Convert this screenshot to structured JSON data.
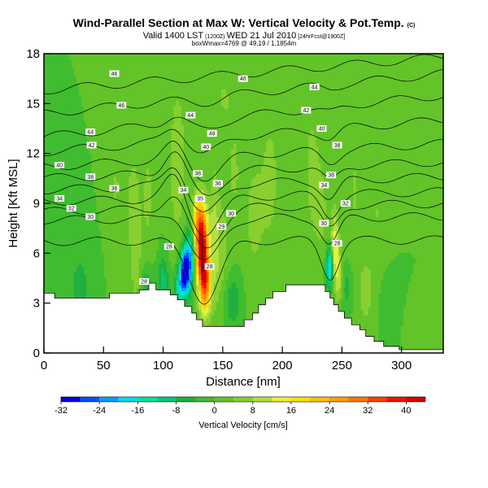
{
  "chart_data": {
    "type": "heatmap",
    "title": "Wind-Parallel Section at Max W: Vertical Velocity & Pot.Temp.",
    "title_mark": "(C)",
    "subtitle": "Valid 1400 LST",
    "subtitle_utc": "(1200Z)",
    "subtitle_date": "WED 21 Jul 2010",
    "subtitle_run": "[24hrFcst@1900Z]",
    "subtitle2": "boxWmax=4769 @ 49,19 / 1,1854m",
    "xlabel": "Distance [nm]",
    "ylabel": "Height [Kft MSL]",
    "xlim": [
      0,
      335
    ],
    "ylim": [
      0,
      18
    ],
    "x_ticks": [
      0,
      50,
      100,
      150,
      200,
      250,
      300
    ],
    "y_ticks": [
      0,
      3,
      6,
      9,
      12,
      15,
      18
    ],
    "colorbar": {
      "label": "Vertical Velocity [cm/s]",
      "min": -32,
      "max": 44,
      "tick_values": [
        -32,
        -24,
        -16,
        -8,
        0,
        8,
        16,
        24,
        32,
        40
      ],
      "tick_labels": [
        "-32",
        "-24",
        "-16",
        "-8",
        "0",
        "8",
        "16",
        "24",
        "32",
        "40"
      ],
      "stops": [
        {
          "v": -32,
          "color": "#0000e0"
        },
        {
          "v": -28,
          "color": "#0050ff"
        },
        {
          "v": -24,
          "color": "#00a0ff"
        },
        {
          "v": -20,
          "color": "#00dcf0"
        },
        {
          "v": -16,
          "color": "#00e0a0"
        },
        {
          "v": -12,
          "color": "#00c878"
        },
        {
          "v": -8,
          "color": "#20b040"
        },
        {
          "v": -4,
          "color": "#40bc30"
        },
        {
          "v": 0,
          "color": "#62c428"
        },
        {
          "v": 4,
          "color": "#88d030"
        },
        {
          "v": 8,
          "color": "#b4e040"
        },
        {
          "v": 12,
          "color": "#e8f040"
        },
        {
          "v": 16,
          "color": "#ffe000"
        },
        {
          "v": 20,
          "color": "#ffc000"
        },
        {
          "v": 24,
          "color": "#ffa000"
        },
        {
          "v": 28,
          "color": "#ff7800"
        },
        {
          "v": 32,
          "color": "#ff4000"
        },
        {
          "v": 36,
          "color": "#f01000"
        },
        {
          "v": 40,
          "color": "#d00000"
        },
        {
          "v": 44,
          "color": "#900020"
        }
      ]
    },
    "background_w": 0,
    "velocity_features": [
      {
        "x": 133,
        "z": 5.8,
        "sx": 3.5,
        "sz": 1.8,
        "w": 34
      },
      {
        "x": 131,
        "z": 7.3,
        "sx": 4.0,
        "sz": 1.5,
        "w": 18
      },
      {
        "x": 136,
        "z": 4.0,
        "sx": 3.0,
        "sz": 1.2,
        "w": 20
      },
      {
        "x": 118,
        "z": 4.9,
        "sx": 3.0,
        "sz": 1.0,
        "w": -32
      },
      {
        "x": 123,
        "z": 5.8,
        "sx": 3.0,
        "sz": 1.2,
        "w": -18
      },
      {
        "x": 113,
        "z": 3.9,
        "sx": 3.0,
        "sz": 0.7,
        "w": -12
      },
      {
        "x": 128,
        "z": 8.2,
        "sx": 3.0,
        "sz": 1.0,
        "w": 8
      },
      {
        "x": 148,
        "z": 6.0,
        "sx": 6.0,
        "sz": 2.5,
        "w": 6
      },
      {
        "x": 158,
        "z": 3.2,
        "sx": 5.0,
        "sz": 1.2,
        "w": -8
      },
      {
        "x": 112,
        "z": 11.5,
        "sx": 5.0,
        "sz": 3.5,
        "w": 7
      },
      {
        "x": 143,
        "z": 7.5,
        "sx": 3.0,
        "sz": 3.0,
        "w": 6
      },
      {
        "x": 75,
        "z": 8.8,
        "sx": 6.0,
        "sz": 3.5,
        "w": 5
      },
      {
        "x": 88,
        "z": 9.5,
        "sx": 4.0,
        "sz": 3.5,
        "w": 4
      },
      {
        "x": 60,
        "z": 10.0,
        "sx": 4.0,
        "sz": 2.0,
        "w": 4
      },
      {
        "x": 176,
        "z": 8.2,
        "sx": 6.0,
        "sz": 3.0,
        "w": 5
      },
      {
        "x": 190,
        "z": 10.5,
        "sx": 6.0,
        "sz": 3.5,
        "w": 5
      },
      {
        "x": 160,
        "z": 10.8,
        "sx": 5.0,
        "sz": 2.5,
        "w": 4
      },
      {
        "x": 225,
        "z": 11.0,
        "sx": 6.0,
        "sz": 3.5,
        "w": 5
      },
      {
        "x": 260,
        "z": 10.0,
        "sx": 6.0,
        "sz": 4.0,
        "w": 4
      },
      {
        "x": 280,
        "z": 8.5,
        "sx": 8.0,
        "sz": 3.0,
        "w": 4
      },
      {
        "x": 233,
        "z": 8.5,
        "sx": 4.0,
        "sz": 2.0,
        "w": 4
      },
      {
        "x": 150,
        "z": 15.5,
        "sx": 10.0,
        "sz": 2.0,
        "w": 4
      },
      {
        "x": 240,
        "z": 5.2,
        "sx": 2.0,
        "sz": 0.9,
        "w": -22
      },
      {
        "x": 244,
        "z": 6.2,
        "sx": 2.5,
        "sz": 1.6,
        "w": 16
      },
      {
        "x": 248,
        "z": 4.5,
        "sx": 2.0,
        "sz": 1.0,
        "w": 10
      },
      {
        "x": 254,
        "z": 4.0,
        "sx": 4.0,
        "sz": 1.0,
        "w": -6
      },
      {
        "x": 86,
        "z": 4.0,
        "sx": 4.0,
        "sz": 1.0,
        "w": -8
      },
      {
        "x": 100,
        "z": 4.4,
        "sx": 3.0,
        "sz": 1.0,
        "w": -10
      },
      {
        "x": 78,
        "z": 4.6,
        "sx": 3.0,
        "sz": 1.6,
        "w": 4
      },
      {
        "x": 30,
        "z": 4.0,
        "sx": 6.0,
        "sz": 1.5,
        "w": -6
      },
      {
        "x": 290,
        "z": 3.0,
        "sx": 6.0,
        "sz": 1.5,
        "w": -4
      },
      {
        "x": 270,
        "z": 3.5,
        "sx": 5.0,
        "sz": 1.5,
        "w": 5
      },
      {
        "x": 312,
        "z": 1.4,
        "sx": 6.0,
        "sz": 1.0,
        "w": 4
      }
    ],
    "terrain": [
      [
        0,
        3.6
      ],
      [
        9,
        3.6
      ],
      [
        9,
        3.3
      ],
      [
        55,
        3.3
      ],
      [
        55,
        3.6
      ],
      [
        80,
        3.6
      ],
      [
        80,
        3.8
      ],
      [
        88,
        3.8
      ],
      [
        88,
        4.2
      ],
      [
        94,
        4.2
      ],
      [
        94,
        3.8
      ],
      [
        106,
        3.8
      ],
      [
        106,
        3.5
      ],
      [
        112,
        3.5
      ],
      [
        112,
        3.2
      ],
      [
        118,
        3.2
      ],
      [
        118,
        2.8
      ],
      [
        124,
        2.8
      ],
      [
        124,
        2.4
      ],
      [
        128,
        2.4
      ],
      [
        128,
        2.0
      ],
      [
        133,
        2.0
      ],
      [
        133,
        1.6
      ],
      [
        168,
        1.6
      ],
      [
        168,
        2.0
      ],
      [
        175,
        2.0
      ],
      [
        175,
        2.4
      ],
      [
        180,
        2.4
      ],
      [
        180,
        2.9
      ],
      [
        186,
        2.9
      ],
      [
        186,
        3.3
      ],
      [
        192,
        3.3
      ],
      [
        192,
        3.7
      ],
      [
        203,
        3.7
      ],
      [
        203,
        4.1
      ],
      [
        236,
        4.1
      ],
      [
        236,
        3.7
      ],
      [
        240,
        3.7
      ],
      [
        240,
        3.3
      ],
      [
        243,
        3.3
      ],
      [
        243,
        2.9
      ],
      [
        247,
        2.9
      ],
      [
        247,
        2.5
      ],
      [
        252,
        2.5
      ],
      [
        252,
        2.1
      ],
      [
        258,
        2.1
      ],
      [
        258,
        1.7
      ],
      [
        265,
        1.7
      ],
      [
        265,
        1.4
      ],
      [
        270,
        1.4
      ],
      [
        270,
        1.0
      ],
      [
        277,
        1.0
      ],
      [
        277,
        0.7
      ],
      [
        285,
        0.7
      ],
      [
        285,
        0.4
      ],
      [
        298,
        0.4
      ],
      [
        298,
        0.2
      ],
      [
        335,
        0.2
      ]
    ],
    "theta_contours": [
      {
        "value": 28,
        "label": "28",
        "base_z": 6.7,
        "top_z": 6.8,
        "dip": 1.2,
        "tilt": 0.0
      },
      {
        "value": 30,
        "label": "30",
        "base_z": 8.0,
        "top_z": 8.2,
        "dip": 0.9,
        "tilt": 0.05
      },
      {
        "value": 32,
        "label": "32",
        "base_z": 8.5,
        "top_z": 9.0,
        "dip": 0.8,
        "tilt": 0.1
      },
      {
        "value": 34,
        "label": "34",
        "base_z": 9.1,
        "top_z": 9.7,
        "dip": 0.7,
        "tilt": 0.15
      },
      {
        "value": 36,
        "label": "36",
        "base_z": 9.8,
        "top_z": 10.6,
        "dip": 0.6,
        "tilt": 0.15
      },
      {
        "value": 38,
        "label": "38",
        "base_z": 10.5,
        "top_z": 11.5,
        "dip": 0.5,
        "tilt": 0.15
      },
      {
        "value": 40,
        "label": "40",
        "base_z": 11.2,
        "top_z": 12.6,
        "dip": 0.4,
        "tilt": 0.1
      },
      {
        "value": 42,
        "label": "42",
        "base_z": 12.1,
        "top_z": 14.0,
        "dip": 0.3,
        "tilt": 0.1
      },
      {
        "value": 44,
        "label": "44",
        "base_z": 13.0,
        "top_z": 15.5,
        "dip": 0.2,
        "tilt": 0.05
      },
      {
        "value": 46,
        "label": "46",
        "base_z": 14.4,
        "top_z": 16.8,
        "dip": 0.1,
        "tilt": 0.0
      },
      {
        "value": 48,
        "label": "48",
        "base_z": 15.8,
        "top_z": 17.8,
        "dip": 0.0,
        "tilt": 0.0
      }
    ],
    "contour_labels": [
      {
        "text": "46",
        "x": 59,
        "z": 16.8
      },
      {
        "text": "46",
        "x": 167,
        "z": 16.5
      },
      {
        "text": "44",
        "x": 227,
        "z": 16.0
      },
      {
        "text": "46",
        "x": 65,
        "z": 14.9
      },
      {
        "text": "44",
        "x": 123,
        "z": 14.3
      },
      {
        "text": "42",
        "x": 220,
        "z": 14.6
      },
      {
        "text": "44",
        "x": 39,
        "z": 13.3
      },
      {
        "text": "48",
        "x": 141,
        "z": 13.2
      },
      {
        "text": "40",
        "x": 233,
        "z": 13.5
      },
      {
        "text": "42",
        "x": 40,
        "z": 12.5
      },
      {
        "text": "40",
        "x": 136,
        "z": 12.4
      },
      {
        "text": "38",
        "x": 246,
        "z": 12.5
      },
      {
        "text": "40",
        "x": 13,
        "z": 11.3
      },
      {
        "text": "38",
        "x": 129,
        "z": 10.8
      },
      {
        "text": "38",
        "x": 241,
        "z": 10.7
      },
      {
        "text": "38",
        "x": 39,
        "z": 10.6
      },
      {
        "text": "36",
        "x": 146,
        "z": 10.2
      },
      {
        "text": "34",
        "x": 235,
        "z": 10.1
      },
      {
        "text": "36",
        "x": 59,
        "z": 9.9
      },
      {
        "text": "34",
        "x": 117,
        "z": 9.8
      },
      {
        "text": "35",
        "x": 131,
        "z": 9.3
      },
      {
        "text": "34",
        "x": 13,
        "z": 9.3
      },
      {
        "text": "32",
        "x": 253,
        "z": 9.0
      },
      {
        "text": "32",
        "x": 23,
        "z": 8.7
      },
      {
        "text": "29",
        "x": 149,
        "z": 7.6
      },
      {
        "text": "30",
        "x": 39,
        "z": 8.2
      },
      {
        "text": "30",
        "x": 157,
        "z": 8.4
      },
      {
        "text": "30",
        "x": 235,
        "z": 7.8
      },
      {
        "text": "28",
        "x": 105,
        "z": 6.4
      },
      {
        "text": "28",
        "x": 246,
        "z": 6.6
      },
      {
        "text": "28",
        "x": 139,
        "z": 5.2
      },
      {
        "text": "28",
        "x": 84,
        "z": 4.3
      }
    ]
  }
}
